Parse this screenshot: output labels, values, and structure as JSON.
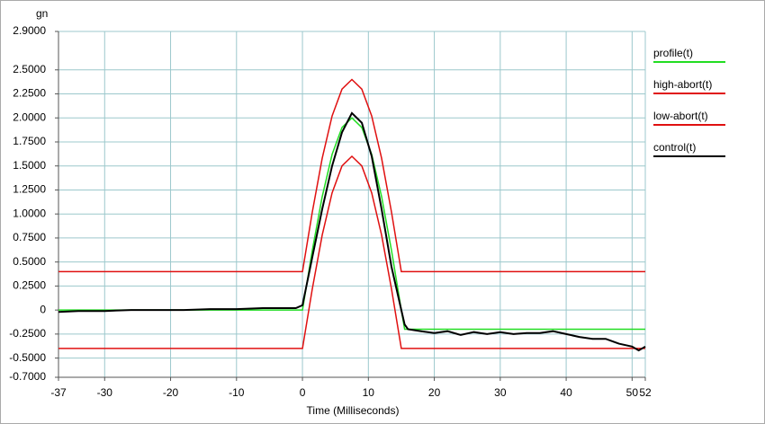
{
  "chart_data": {
    "type": "line",
    "y_label": "gn",
    "x_label": "Time (Milliseconds)",
    "xlim": [
      -37,
      52
    ],
    "ylim": [
      -0.7,
      2.9
    ],
    "xticks": [
      -37,
      -30,
      -20,
      -10,
      0,
      10,
      20,
      30,
      40,
      50,
      52
    ],
    "yticks": [
      {
        "value": 2.9,
        "label": "2.9000"
      },
      {
        "value": 2.5,
        "label": "2.5000"
      },
      {
        "value": 2.25,
        "label": "2.2500"
      },
      {
        "value": 2.0,
        "label": "2.0000"
      },
      {
        "value": 1.75,
        "label": "1.7500"
      },
      {
        "value": 1.5,
        "label": "1.5000"
      },
      {
        "value": 1.25,
        "label": "1.2500"
      },
      {
        "value": 1.0,
        "label": "1.0000"
      },
      {
        "value": 0.75,
        "label": "0.7500"
      },
      {
        "value": 0.5,
        "label": "0.5000"
      },
      {
        "value": 0.25,
        "label": "0.2500"
      },
      0,
      {
        "value": -0.25,
        "label": "-0.2500"
      },
      {
        "value": -0.5,
        "label": "-0.5000"
      },
      {
        "value": -0.7,
        "label": "-0.7000"
      }
    ],
    "grid": true,
    "series": [
      {
        "name": "profile(t)",
        "color": "#22dd22",
        "x": [
          -37,
          0,
          1.5,
          3,
          4.5,
          6,
          7.5,
          9,
          10.5,
          12,
          13.5,
          15,
          15.5,
          52
        ],
        "values": [
          0,
          0,
          0.62,
          1.18,
          1.62,
          1.9,
          2.0,
          1.9,
          1.62,
          1.18,
          0.62,
          0,
          -0.2,
          -0.2
        ]
      },
      {
        "name": "high-abort(t)",
        "color": "#e01010",
        "x": [
          -37,
          0,
          1.5,
          3,
          4.5,
          6,
          7.5,
          9,
          10.5,
          12,
          13.5,
          15,
          52
        ],
        "values": [
          0.4,
          0.4,
          1.02,
          1.58,
          2.02,
          2.3,
          2.4,
          2.3,
          2.02,
          1.58,
          1.02,
          0.4,
          0.4
        ]
      },
      {
        "name": "low-abort(t)",
        "color": "#e01010",
        "x": [
          -37,
          0,
          1.5,
          3,
          4.5,
          6,
          7.5,
          9,
          10.5,
          12,
          13.5,
          15,
          52
        ],
        "values": [
          -0.4,
          -0.4,
          0.22,
          0.78,
          1.22,
          1.5,
          1.6,
          1.5,
          1.22,
          0.78,
          0.22,
          -0.4,
          -0.4
        ]
      },
      {
        "name": "control(t)",
        "color": "#000000",
        "x": [
          -37,
          -34,
          -30,
          -26,
          -22,
          -18,
          -14,
          -10,
          -6,
          -3,
          -1,
          0,
          1.5,
          3,
          4.5,
          6,
          7.5,
          9,
          10.5,
          12,
          13.5,
          15,
          15.5,
          16,
          18,
          20,
          22,
          24,
          26,
          28,
          30,
          32,
          34,
          36,
          38,
          40,
          42,
          44,
          46,
          48,
          50,
          51,
          52
        ],
        "values": [
          -0.02,
          -0.01,
          -0.01,
          0,
          0,
          0,
          0.01,
          0.01,
          0.02,
          0.02,
          0.02,
          0.05,
          0.55,
          1.05,
          1.5,
          1.85,
          2.05,
          1.95,
          1.6,
          1.05,
          0.45,
          0.0,
          -0.15,
          -0.2,
          -0.22,
          -0.24,
          -0.22,
          -0.26,
          -0.23,
          -0.25,
          -0.23,
          -0.25,
          -0.24,
          -0.24,
          -0.22,
          -0.25,
          -0.28,
          -0.3,
          -0.3,
          -0.35,
          -0.38,
          -0.42,
          -0.38
        ]
      }
    ]
  }
}
